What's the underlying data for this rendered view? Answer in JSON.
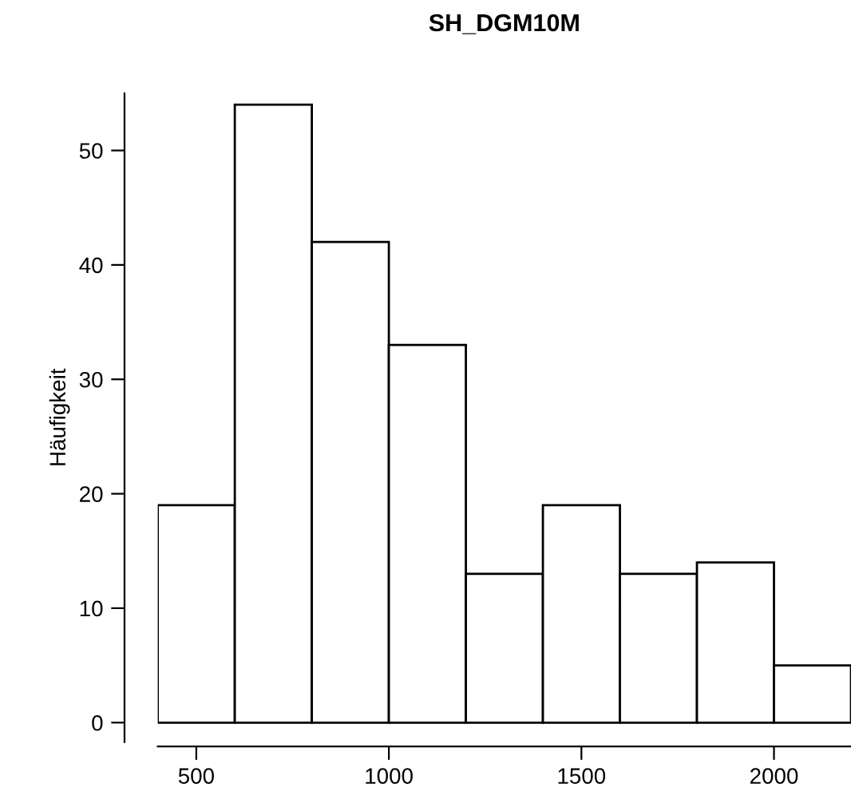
{
  "chart_data": {
    "type": "histogram",
    "title": "SH_DGM10M",
    "ylabel": "Häufigkeit",
    "bins": [
      400,
      600,
      800,
      1000,
      1200,
      1400,
      1600,
      1800,
      2000,
      2200
    ],
    "values": [
      19,
      54,
      42,
      33,
      13,
      19,
      13,
      14,
      5
    ],
    "color": "#ffffff",
    "xlim": [
      400,
      2200
    ],
    "xticks": [
      500,
      1000,
      1500,
      2000
    ],
    "ylim": [
      -1.7,
      55
    ],
    "yticks": [
      0,
      10,
      20,
      30,
      40,
      50
    ],
    "grid": false
  }
}
